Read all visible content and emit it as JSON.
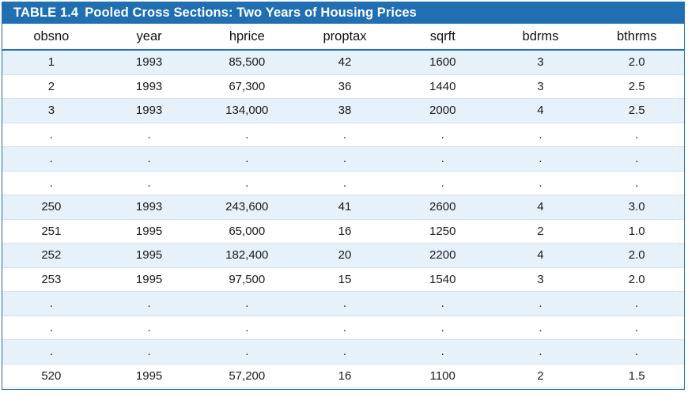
{
  "table": {
    "number": "TABLE 1.4",
    "title": "Pooled Cross Sections: Two Years of Housing Prices",
    "headers": [
      "obsno",
      "year",
      "hprice",
      "proptax",
      "sqrft",
      "bdrms",
      "bthrms"
    ],
    "rows": [
      [
        "1",
        "1993",
        "85,500",
        "42",
        "1600",
        "3",
        "2.0"
      ],
      [
        "2",
        "1993",
        "67,300",
        "36",
        "1440",
        "3",
        "2.5"
      ],
      [
        "3",
        "1993",
        "134,000",
        "38",
        "2000",
        "4",
        "2.5"
      ],
      [
        ".",
        ".",
        ".",
        ".",
        ".",
        ".",
        "."
      ],
      [
        ".",
        ".",
        ".",
        ".",
        ".",
        ".",
        "."
      ],
      [
        ".",
        ".",
        ".",
        ".",
        ".",
        ".",
        "."
      ],
      [
        "250",
        "1993",
        "243,600",
        "41",
        "2600",
        "4",
        "3.0"
      ],
      [
        "251",
        "1995",
        "65,000",
        "16",
        "1250",
        "2",
        "1.0"
      ],
      [
        "252",
        "1995",
        "182,400",
        "20",
        "2200",
        "4",
        "2.0"
      ],
      [
        "253",
        "1995",
        "97,500",
        "15",
        "1540",
        "3",
        "2.0"
      ],
      [
        ".",
        ".",
        ".",
        ".",
        ".",
        ".",
        "."
      ],
      [
        ".",
        ".",
        ".",
        ".",
        ".",
        ".",
        "."
      ],
      [
        ".",
        ".",
        ".",
        ".",
        ".",
        ".",
        "."
      ],
      [
        "520",
        "1995",
        "57,200",
        "16",
        "1100",
        "2",
        "1.5"
      ]
    ]
  },
  "colors": {
    "accent": "#1f6fb2",
    "alt_row": "#e6f1fa",
    "row_line": "#cfe3f2"
  }
}
